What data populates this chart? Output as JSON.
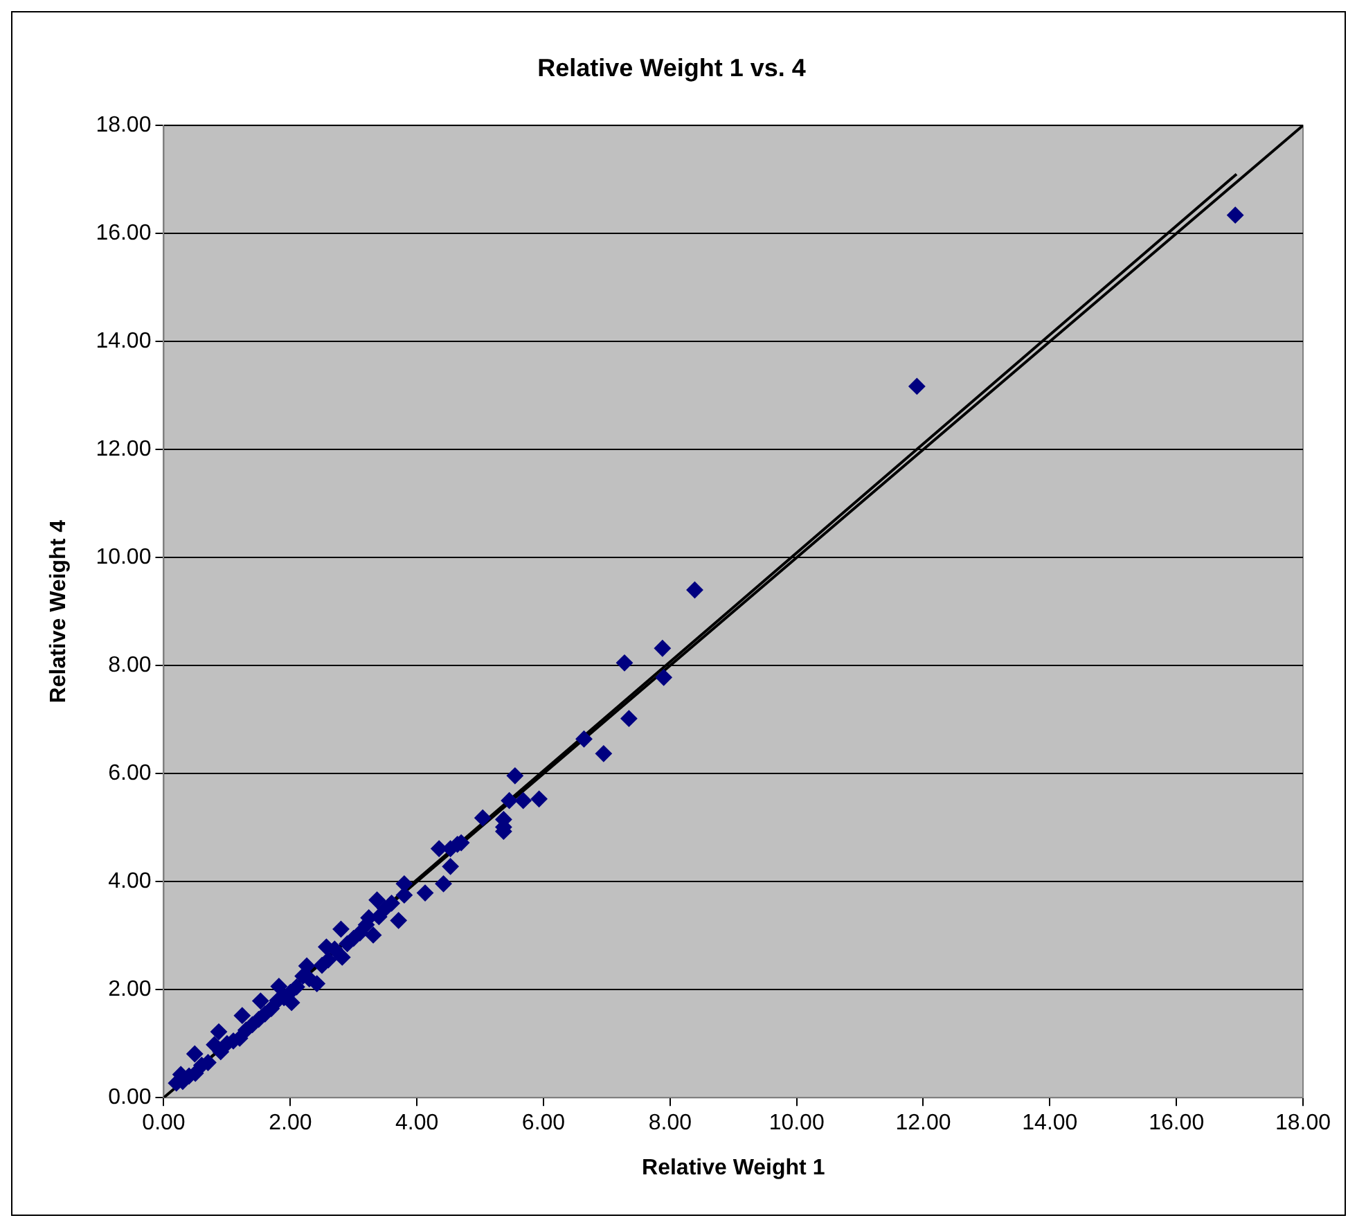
{
  "chart_data": {
    "type": "scatter",
    "title": "Relative Weight 1 vs. 4",
    "xlabel": "Relative Weight 1",
    "ylabel": "Relative Weight 4",
    "xlim": [
      0,
      18
    ],
    "ylim": [
      0,
      18
    ],
    "xticks": [
      {
        "value": 0,
        "label": "0.00"
      },
      {
        "value": 2,
        "label": "2.00"
      },
      {
        "value": 4,
        "label": "4.00"
      },
      {
        "value": 6,
        "label": "6.00"
      },
      {
        "value": 8,
        "label": "8.00"
      },
      {
        "value": 10,
        "label": "10.00"
      },
      {
        "value": 12,
        "label": "12.00"
      },
      {
        "value": 14,
        "label": "14.00"
      },
      {
        "value": 16,
        "label": "16.00"
      },
      {
        "value": 18,
        "label": "18.00"
      }
    ],
    "yticks": [
      {
        "value": 0,
        "label": "0.00"
      },
      {
        "value": 2,
        "label": "2.00"
      },
      {
        "value": 4,
        "label": "4.00"
      },
      {
        "value": 6,
        "label": "6.00"
      },
      {
        "value": 8,
        "label": "8.00"
      },
      {
        "value": 10,
        "label": "10.00"
      },
      {
        "value": 12,
        "label": "12.00"
      },
      {
        "value": 14,
        "label": "14.00"
      },
      {
        "value": 16,
        "label": "16.00"
      },
      {
        "value": 18,
        "label": "18.00"
      }
    ],
    "grid": "y",
    "marker": "diamond",
    "series": [
      {
        "color": "#000080",
        "x": [
          0.2,
          0.27,
          0.3,
          0.4,
          0.49,
          0.5,
          0.6,
          0.7,
          0.8,
          0.87,
          0.9,
          1.0,
          1.1,
          1.2,
          1.24,
          1.3,
          1.4,
          1.5,
          1.53,
          1.6,
          1.7,
          1.8,
          1.82,
          1.9,
          2.0,
          2.02,
          2.1,
          2.2,
          2.26,
          2.3,
          2.42,
          2.5,
          2.57,
          2.6,
          2.7,
          2.8,
          2.82,
          2.9,
          3.0,
          3.1,
          3.2,
          3.24,
          3.31,
          3.37,
          3.4,
          3.5,
          3.6,
          3.71,
          3.8,
          3.8,
          4.13,
          4.35,
          4.42,
          4.53,
          4.53,
          4.64,
          4.7,
          5.04,
          5.37,
          5.37,
          5.37,
          5.46,
          5.55,
          5.68,
          5.93,
          6.64,
          6.95,
          7.28,
          7.35,
          7.88,
          7.9,
          8.39,
          11.9,
          16.93
        ],
        "values": [
          0.27,
          0.43,
          0.3,
          0.4,
          0.81,
          0.45,
          0.6,
          0.65,
          0.98,
          1.22,
          0.85,
          1.0,
          1.05,
          1.1,
          1.52,
          1.25,
          1.35,
          1.45,
          1.79,
          1.55,
          1.65,
          1.8,
          2.06,
          1.85,
          1.95,
          1.76,
          2.05,
          2.25,
          2.44,
          2.2,
          2.11,
          2.45,
          2.79,
          2.55,
          2.75,
          3.12,
          2.6,
          2.85,
          2.95,
          3.05,
          3.2,
          3.33,
          3.01,
          3.66,
          3.35,
          3.5,
          3.6,
          3.28,
          3.75,
          3.96,
          3.79,
          4.61,
          3.96,
          4.28,
          4.61,
          4.69,
          4.72,
          5.18,
          5.15,
          4.93,
          5.01,
          5.5,
          5.96,
          5.5,
          5.53,
          6.64,
          6.37,
          8.05,
          7.02,
          8.32,
          7.78,
          9.4,
          13.17,
          16.34
        ]
      },
      {
        "type": "line",
        "color": "#000000",
        "marker": "none",
        "x": [
          0,
          18
        ],
        "values": [
          0,
          18
        ]
      },
      {
        "type": "line",
        "color": "#000000",
        "marker": "none",
        "x": [
          0.2,
          16.95
        ],
        "values": [
          0.2,
          17.1
        ]
      }
    ]
  }
}
